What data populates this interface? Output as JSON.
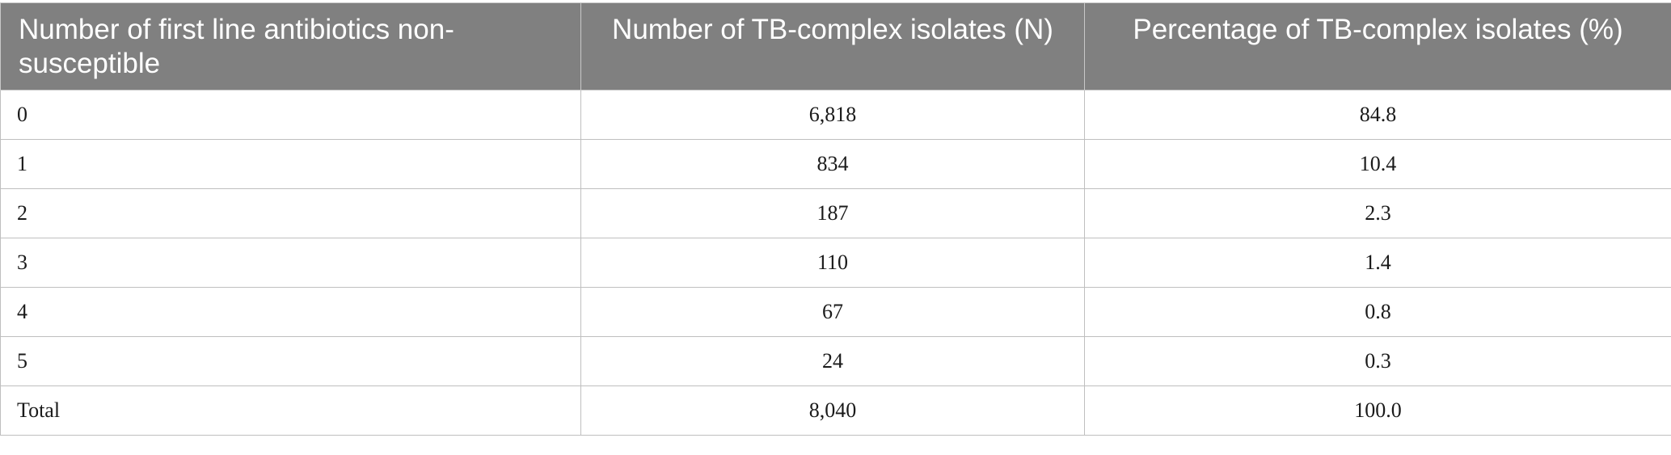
{
  "table": {
    "headers": [
      "Number of first line antibiotics non-susceptible",
      "Number of TB-complex isolates (N)",
      "Percentage of TB-complex isolates (%)"
    ],
    "rows": [
      [
        "0",
        "6,818",
        "84.8"
      ],
      [
        "1",
        "834",
        "10.4"
      ],
      [
        "2",
        "187",
        "2.3"
      ],
      [
        "3",
        "110",
        "1.4"
      ],
      [
        "4",
        "67",
        "0.8"
      ],
      [
        "5",
        "24",
        "0.3"
      ],
      [
        "Total",
        "8,040",
        "100.0"
      ]
    ]
  }
}
